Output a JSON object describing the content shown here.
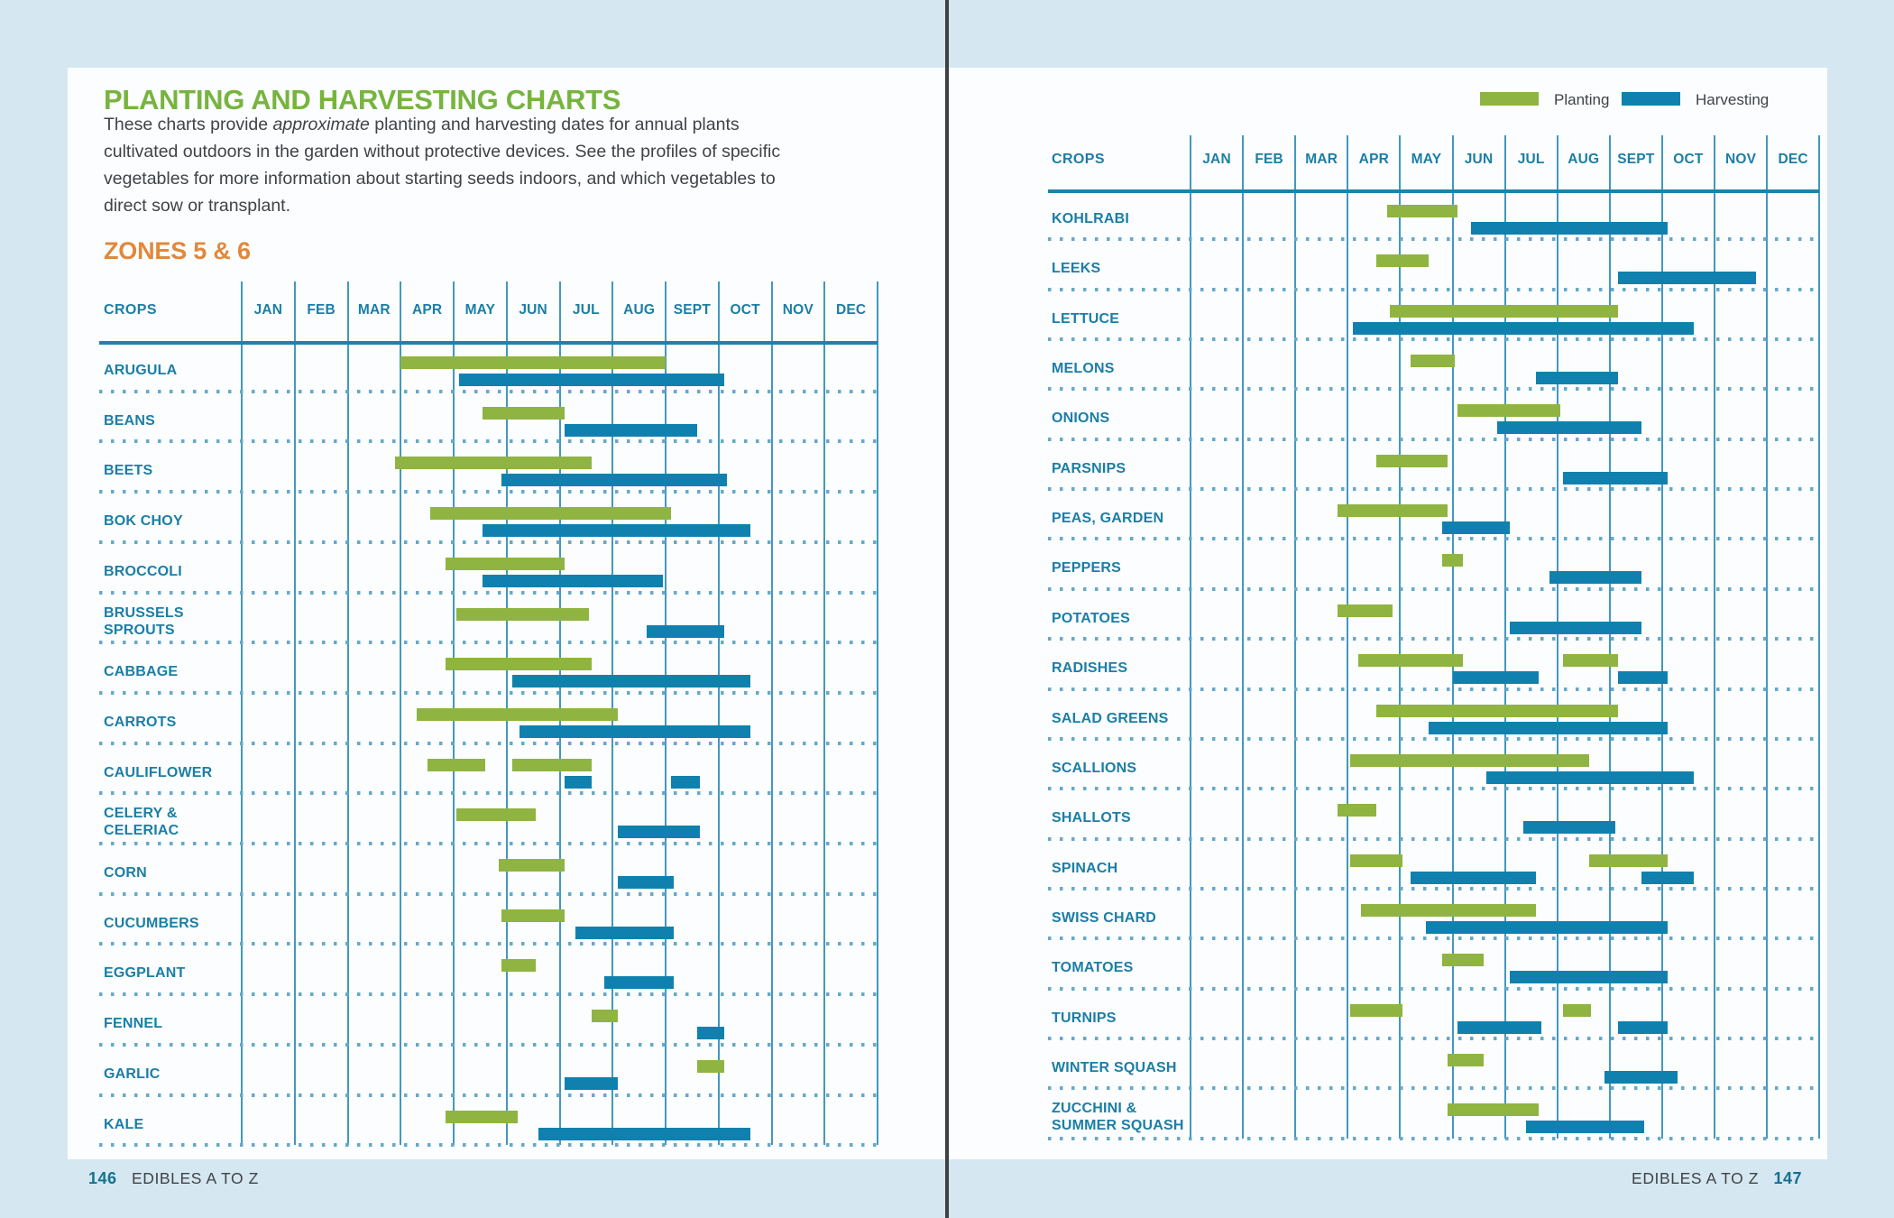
{
  "left_page": {
    "title": "PLANTING AND HARVESTING CHARTS",
    "intro": {
      "line1_pre": "These charts provide ",
      "line1_em": "approximate",
      "line1_post": " planting and harvesting dates for annual plants",
      "line2": "cultivated outdoors in the garden without protective devices. See the profiles of specific",
      "line3": "vegetables for more information about starting seeds indoors, and which vegetables to",
      "line4": "direct sow or transplant."
    },
    "zone_heading": "ZONES 5 & 6",
    "footer": {
      "page_number": "146",
      "section_title": "EDIBLES A TO Z"
    }
  },
  "right_page": {
    "legend": [
      {
        "label": "Planting",
        "color": "#8fb441"
      },
      {
        "label": "Harvesting",
        "color": "#1081ae"
      }
    ],
    "footer": {
      "section_title": "EDIBLES A TO Z",
      "page_number": "147"
    }
  },
  "colors": {
    "margin_background": "#d5e7f1",
    "page_background": "#fcfdfe",
    "gutter_line": "#3d4145",
    "title_green": "#77b43f",
    "zone_orange": "#e1883c",
    "chart_teal_text": "#1b7ea6",
    "grid_line_blue": "#4398bf",
    "header_rule_blue": "#1c83ac",
    "planting_green": "#8fb441",
    "harvesting_blue": "#1081ae",
    "dotted_separator": "#66a9c9",
    "body_text": "#3f4347",
    "page_number_teal": "#15718f"
  },
  "chart_data": [
    {
      "type": "gantt",
      "title": "Zones 5 & 6 planting and harvesting calendar (left page)",
      "columns_header": "CROPS",
      "months": [
        "JAN",
        "FEB",
        "MAR",
        "APR",
        "MAY",
        "JUN",
        "JUL",
        "AUG",
        "SEPT",
        "OCT",
        "NOV",
        "DEC"
      ],
      "units": "month ranges, 0 = Jan 1, 12 = Dec 31",
      "legend": {
        "planting": "green bar (top)",
        "harvesting": "blue bar (bottom)"
      },
      "rows": [
        {
          "crop": "ARUGULA",
          "label_lines": [
            "ARUGULA"
          ],
          "planting": [
            [
              3.0,
              8.0
            ]
          ],
          "harvesting": [
            [
              4.1,
              9.1
            ]
          ]
        },
        {
          "crop": "BEANS",
          "label_lines": [
            "BEANS"
          ],
          "planting": [
            [
              4.55,
              6.1
            ]
          ],
          "harvesting": [
            [
              6.1,
              8.6
            ]
          ]
        },
        {
          "crop": "BEETS",
          "label_lines": [
            "BEETS"
          ],
          "planting": [
            [
              2.9,
              6.6
            ]
          ],
          "harvesting": [
            [
              4.9,
              9.15
            ]
          ]
        },
        {
          "crop": "BOK CHOY",
          "label_lines": [
            "BOK CHOY"
          ],
          "planting": [
            [
              3.55,
              8.1
            ]
          ],
          "harvesting": [
            [
              4.55,
              9.6
            ]
          ]
        },
        {
          "crop": "BROCCOLI",
          "label_lines": [
            "BROCCOLI"
          ],
          "planting": [
            [
              3.85,
              6.1
            ]
          ],
          "harvesting": [
            [
              4.55,
              7.95
            ]
          ]
        },
        {
          "crop": "BRUSSELS SPROUTS",
          "label_lines": [
            "BRUSSELS",
            "SPROUTS"
          ],
          "planting": [
            [
              4.05,
              6.55
            ]
          ],
          "harvesting": [
            [
              7.65,
              9.1
            ]
          ]
        },
        {
          "crop": "CABBAGE",
          "label_lines": [
            "CABBAGE"
          ],
          "planting": [
            [
              3.85,
              6.6
            ]
          ],
          "harvesting": [
            [
              5.1,
              9.6
            ]
          ]
        },
        {
          "crop": "CARROTS",
          "label_lines": [
            "CARROTS"
          ],
          "planting": [
            [
              3.3,
              7.1
            ]
          ],
          "harvesting": [
            [
              5.25,
              9.6
            ]
          ]
        },
        {
          "crop": "CAULIFLOWER",
          "label_lines": [
            "CAULIFLOWER"
          ],
          "planting": [
            [
              3.5,
              4.6
            ],
            [
              5.1,
              6.6
            ]
          ],
          "harvesting": [
            [
              6.1,
              6.6
            ],
            [
              8.1,
              8.65
            ]
          ]
        },
        {
          "crop": "CELERY & CELERIAC",
          "label_lines": [
            "CELERY &",
            "CELERIAC"
          ],
          "planting": [
            [
              4.05,
              5.55
            ]
          ],
          "harvesting": [
            [
              7.1,
              8.65
            ]
          ]
        },
        {
          "crop": "CORN",
          "label_lines": [
            "CORN"
          ],
          "planting": [
            [
              4.85,
              6.1
            ]
          ],
          "harvesting": [
            [
              7.1,
              8.15
            ]
          ]
        },
        {
          "crop": "CUCUMBERS",
          "label_lines": [
            "CUCUMBERS"
          ],
          "planting": [
            [
              4.9,
              6.1
            ]
          ],
          "harvesting": [
            [
              6.3,
              8.15
            ]
          ]
        },
        {
          "crop": "EGGPLANT",
          "label_lines": [
            "EGGPLANT"
          ],
          "planting": [
            [
              4.9,
              5.55
            ]
          ],
          "harvesting": [
            [
              6.85,
              8.15
            ]
          ]
        },
        {
          "crop": "FENNEL",
          "label_lines": [
            "FENNEL"
          ],
          "planting": [
            [
              6.6,
              7.1
            ]
          ],
          "harvesting": [
            [
              8.6,
              9.1
            ]
          ]
        },
        {
          "crop": "GARLIC",
          "label_lines": [
            "GARLIC"
          ],
          "planting": [
            [
              8.6,
              9.1
            ]
          ],
          "harvesting": [
            [
              6.1,
              7.1
            ]
          ]
        },
        {
          "crop": "KALE",
          "label_lines": [
            "KALE"
          ],
          "planting": [
            [
              3.85,
              5.2
            ]
          ],
          "harvesting": [
            [
              5.6,
              9.6
            ]
          ]
        }
      ]
    },
    {
      "type": "gantt",
      "title": "Zones 5 & 6 planting and harvesting calendar (right page)",
      "columns_header": "CROPS",
      "months": [
        "JAN",
        "FEB",
        "MAR",
        "APR",
        "MAY",
        "JUN",
        "JUL",
        "AUG",
        "SEPT",
        "OCT",
        "NOV",
        "DEC"
      ],
      "units": "month ranges, 0 = Jan 1, 12 = Dec 31",
      "legend": {
        "planting": "green bar (top)",
        "harvesting": "blue bar (bottom)"
      },
      "rows": [
        {
          "crop": "KOHLRABI",
          "label_lines": [
            "KOHLRABI"
          ],
          "planting": [
            [
              3.75,
              5.1
            ]
          ],
          "harvesting": [
            [
              5.35,
              9.1
            ]
          ]
        },
        {
          "crop": "LEEKS",
          "label_lines": [
            "LEEKS"
          ],
          "planting": [
            [
              3.55,
              4.55
            ]
          ],
          "harvesting": [
            [
              8.15,
              10.8
            ]
          ]
        },
        {
          "crop": "LETTUCE",
          "label_lines": [
            "LETTUCE"
          ],
          "planting": [
            [
              3.8,
              8.15
            ]
          ],
          "harvesting": [
            [
              3.1,
              9.6
            ]
          ]
        },
        {
          "crop": "MELONS",
          "label_lines": [
            "MELONS"
          ],
          "planting": [
            [
              4.2,
              5.05
            ]
          ],
          "harvesting": [
            [
              6.6,
              8.15
            ]
          ]
        },
        {
          "crop": "ONIONS",
          "label_lines": [
            "ONIONS"
          ],
          "planting": [
            [
              5.1,
              7.05
            ]
          ],
          "harvesting": [
            [
              5.85,
              8.6
            ]
          ]
        },
        {
          "crop": "PARSNIPS",
          "label_lines": [
            "PARSNIPS"
          ],
          "planting": [
            [
              3.55,
              4.9
            ]
          ],
          "harvesting": [
            [
              7.1,
              9.1
            ]
          ]
        },
        {
          "crop": "PEAS, GARDEN",
          "label_lines": [
            "PEAS, GARDEN"
          ],
          "planting": [
            [
              2.8,
              4.9
            ]
          ],
          "harvesting": [
            [
              4.8,
              6.1
            ]
          ]
        },
        {
          "crop": "PEPPERS",
          "label_lines": [
            "PEPPERS"
          ],
          "planting": [
            [
              4.8,
              5.2
            ]
          ],
          "harvesting": [
            [
              6.85,
              8.6
            ]
          ]
        },
        {
          "crop": "POTATOES",
          "label_lines": [
            "POTATOES"
          ],
          "planting": [
            [
              2.8,
              3.85
            ]
          ],
          "harvesting": [
            [
              6.1,
              8.6
            ]
          ]
        },
        {
          "crop": "RADISHES",
          "label_lines": [
            "RADISHES"
          ],
          "planting": [
            [
              3.2,
              5.2
            ],
            [
              7.1,
              8.15
            ]
          ],
          "harvesting": [
            [
              5.0,
              6.65
            ],
            [
              8.15,
              9.1
            ]
          ]
        },
        {
          "crop": "SALAD GREENS",
          "label_lines": [
            "SALAD GREENS"
          ],
          "planting": [
            [
              3.55,
              8.15
            ]
          ],
          "harvesting": [
            [
              4.55,
              9.1
            ]
          ]
        },
        {
          "crop": "SCALLIONS",
          "label_lines": [
            "SCALLIONS"
          ],
          "planting": [
            [
              3.05,
              7.6
            ]
          ],
          "harvesting": [
            [
              5.65,
              9.6
            ]
          ]
        },
        {
          "crop": "SHALLOTS",
          "label_lines": [
            "SHALLOTS"
          ],
          "planting": [
            [
              2.8,
              3.55
            ]
          ],
          "harvesting": [
            [
              6.35,
              8.1
            ]
          ]
        },
        {
          "crop": "SPINACH",
          "label_lines": [
            "SPINACH"
          ],
          "planting": [
            [
              3.05,
              4.05
            ],
            [
              7.6,
              9.1
            ]
          ],
          "harvesting": [
            [
              4.2,
              6.6
            ],
            [
              8.6,
              9.6
            ]
          ]
        },
        {
          "crop": "SWISS CHARD",
          "label_lines": [
            "SWISS CHARD"
          ],
          "planting": [
            [
              3.25,
              6.6
            ]
          ],
          "harvesting": [
            [
              4.5,
              9.1
            ]
          ]
        },
        {
          "crop": "TOMATOES",
          "label_lines": [
            "TOMATOES"
          ],
          "planting": [
            [
              4.8,
              5.6
            ]
          ],
          "harvesting": [
            [
              6.1,
              9.1
            ]
          ]
        },
        {
          "crop": "TURNIPS",
          "label_lines": [
            "TURNIPS"
          ],
          "planting": [
            [
              3.05,
              4.05
            ],
            [
              7.1,
              7.65
            ]
          ],
          "harvesting": [
            [
              5.1,
              6.7
            ],
            [
              8.15,
              9.1
            ]
          ]
        },
        {
          "crop": "WINTER SQUASH",
          "label_lines": [
            "WINTER SQUASH"
          ],
          "planting": [
            [
              4.9,
              5.6
            ]
          ],
          "harvesting": [
            [
              7.9,
              9.3
            ]
          ]
        },
        {
          "crop": "ZUCCHINI & SUMMER SQUASH",
          "label_lines": [
            "ZUCCHINI &",
            "SUMMER SQUASH"
          ],
          "planting": [
            [
              4.9,
              6.65
            ]
          ],
          "harvesting": [
            [
              6.4,
              8.65
            ]
          ]
        }
      ]
    }
  ]
}
